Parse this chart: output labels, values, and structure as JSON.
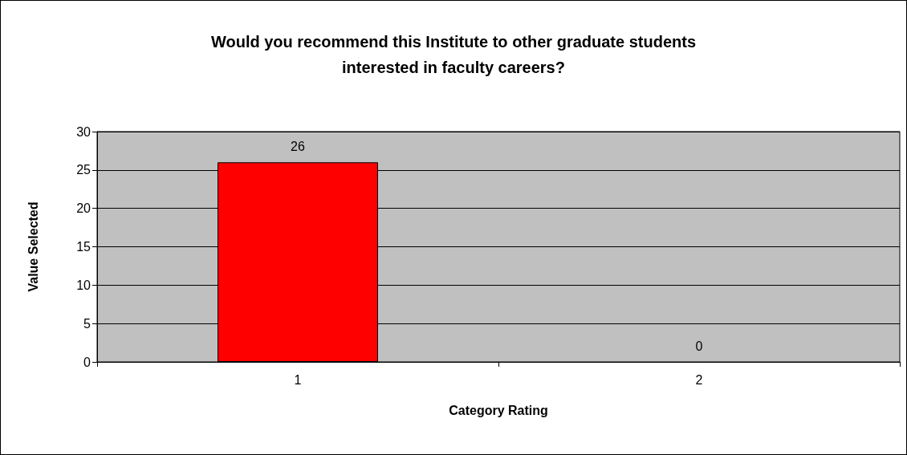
{
  "chart_data": {
    "type": "bar",
    "title": "Would you recommend this Institute to other graduate students\ninterested in faculty careers?",
    "xlabel": "Category Rating",
    "ylabel": "Value Selected",
    "categories": [
      "1",
      "2"
    ],
    "values": [
      26,
      0
    ],
    "color": "#ff0000",
    "ylim": [
      0,
      30
    ],
    "yticks": [
      0,
      5,
      10,
      15,
      20,
      25,
      30
    ],
    "grid": "y",
    "data_labels": true
  }
}
